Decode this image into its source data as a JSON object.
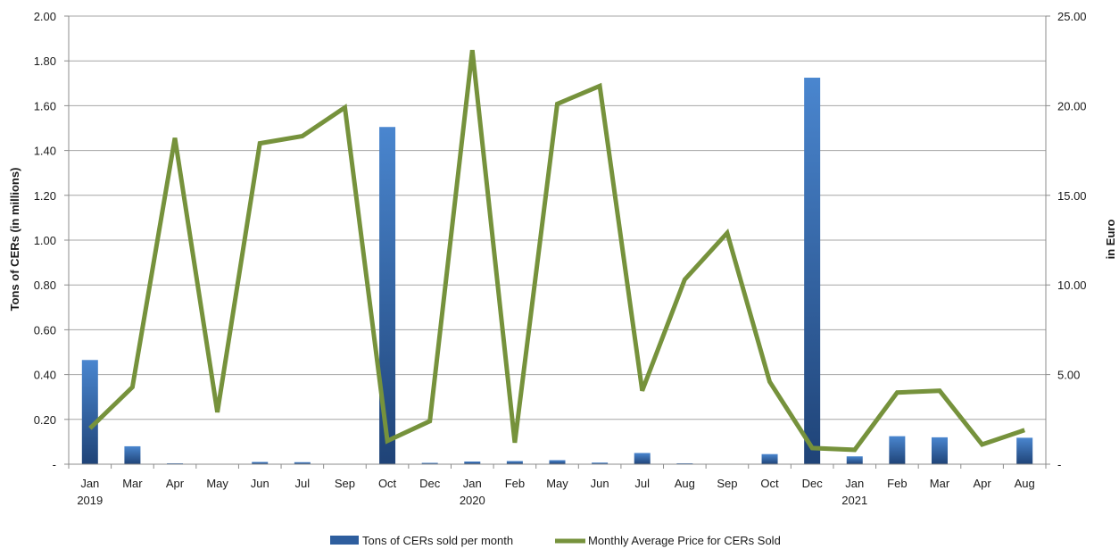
{
  "chart_data": {
    "type": "bar+line",
    "categories": [
      "Jan",
      "Mar",
      "Apr",
      "May",
      "Jun",
      "Jul",
      "Sep",
      "Oct",
      "Dec",
      "Jan",
      "Feb",
      "May",
      "Jun",
      "Jul",
      "Aug",
      "Sep",
      "Oct",
      "Dec",
      "Jan",
      "Feb",
      "Mar",
      "Apr",
      "Aug"
    ],
    "year_labels": [
      {
        "index": 0,
        "label": "2019"
      },
      {
        "index": 9,
        "label": "2020"
      },
      {
        "index": 18,
        "label": "2021"
      }
    ],
    "series": [
      {
        "name": "Tons of CERs sold per month",
        "type": "bar",
        "axis": "left",
        "color": "#2e5e9e",
        "values": [
          0.465,
          0.08,
          0.004,
          0.001,
          0.01,
          0.009,
          0.002,
          1.505,
          0.006,
          0.012,
          0.014,
          0.018,
          0.007,
          0.05,
          0.004,
          0.002,
          0.045,
          1.725,
          0.035,
          0.125,
          0.12,
          0.001,
          0.118
        ]
      },
      {
        "name": "Monthly Average Price for CERs Sold",
        "type": "line",
        "axis": "right",
        "color": "#76923c",
        "values": [
          2.0,
          4.3,
          18.2,
          2.9,
          17.9,
          18.3,
          19.9,
          1.3,
          2.4,
          23.1,
          1.2,
          20.1,
          21.1,
          4.1,
          10.3,
          12.9,
          4.6,
          0.9,
          0.8,
          4.0,
          4.1,
          1.1,
          1.9
        ]
      }
    ],
    "y_left": {
      "label": "Tons of CERs (in  millions)",
      "ylim": [
        0,
        2.0
      ],
      "ticks": [
        {
          "value": 0,
          "label": "-"
        },
        {
          "value": 0.2,
          "label": "0.20"
        },
        {
          "value": 0.4,
          "label": "0.40"
        },
        {
          "value": 0.6,
          "label": "0.60"
        },
        {
          "value": 0.8,
          "label": "0.80"
        },
        {
          "value": 1.0,
          "label": "1.00"
        },
        {
          "value": 1.2,
          "label": "1.20"
        },
        {
          "value": 1.4,
          "label": "1.40"
        },
        {
          "value": 1.6,
          "label": "1.60"
        },
        {
          "value": 1.8,
          "label": "1.80"
        },
        {
          "value": 2.0,
          "label": "2.00"
        }
      ]
    },
    "y_right": {
      "label": "in Euro",
      "ylim": [
        0,
        25
      ],
      "ticks": [
        {
          "value": 0,
          "label": "-"
        },
        {
          "value": 5,
          "label": "5.00"
        },
        {
          "value": 10,
          "label": "10.00"
        },
        {
          "value": 15,
          "label": "15.00"
        },
        {
          "value": 20,
          "label": "20.00"
        },
        {
          "value": 25,
          "label": "25.00"
        }
      ]
    },
    "grid": true,
    "legend_position": "bottom"
  }
}
